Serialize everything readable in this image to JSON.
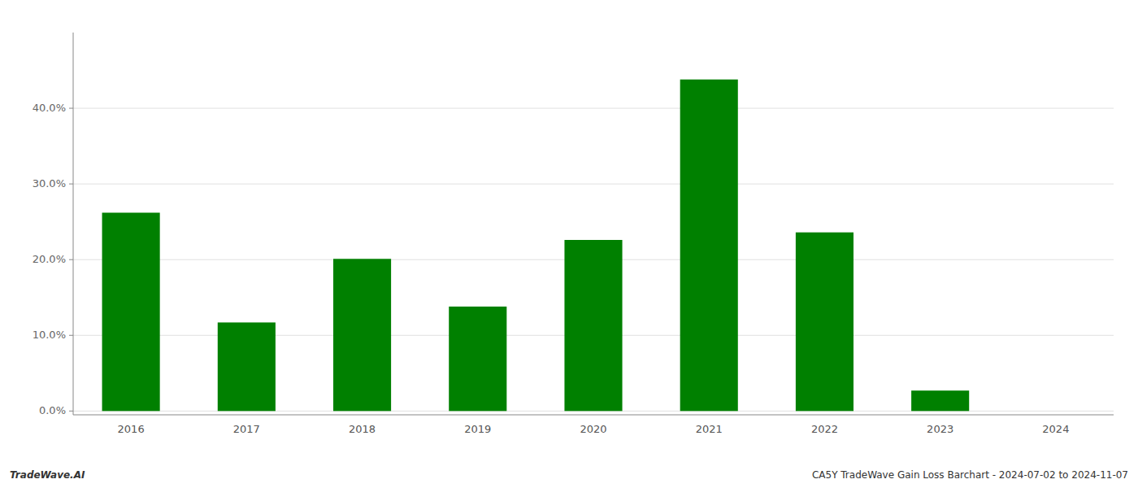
{
  "chart_data": {
    "type": "bar",
    "categories": [
      "2016",
      "2017",
      "2018",
      "2019",
      "2020",
      "2021",
      "2022",
      "2023",
      "2024"
    ],
    "values": [
      0.262,
      0.117,
      0.201,
      0.138,
      0.226,
      0.438,
      0.236,
      0.027,
      0.0
    ],
    "color": "#008000",
    "ylim": [
      -0.005,
      0.5
    ],
    "yticks": [
      {
        "value": 0.0,
        "label": "0.0%"
      },
      {
        "value": 0.1,
        "label": "10.0%"
      },
      {
        "value": 0.2,
        "label": "20.0%"
      },
      {
        "value": 0.3,
        "label": "30.0%"
      },
      {
        "value": 0.4,
        "label": "40.0%"
      }
    ],
    "grid": true,
    "annotations": [
      {
        "text": "TradeWave.AI"
      },
      {
        "text": "CA5Y TradeWave Gain Loss Barchart - 2024-07-02 to 2024-11-07"
      }
    ]
  }
}
